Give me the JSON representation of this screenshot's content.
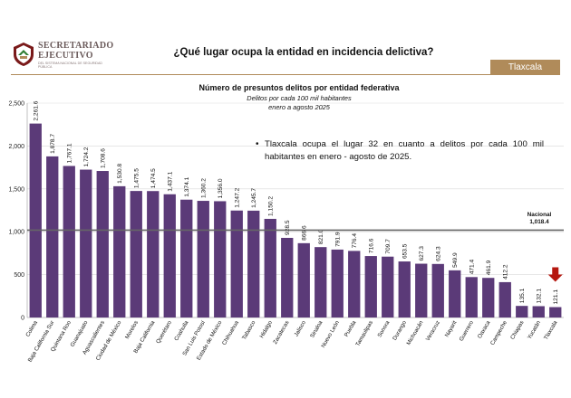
{
  "header": {
    "org_name": "SECRETARIADO EJECUTIVO",
    "org_subtitle": "del Sistema Nacional de Seguridad Pública",
    "question": "¿Qué lugar ocupa la entidad en incidencia delictiva?",
    "state_tab": "Tlaxcala",
    "accent_color": "#b08b5a"
  },
  "note": "Tlaxcala ocupa el lugar 32 en cuanto a delitos por cada 100 mil habitantes en enero - agosto de 2025.",
  "chart_data": {
    "type": "bar",
    "title": "Número de presuntos delitos por entidad federativa",
    "subtitle": "Delitos por cada 100 mil habitantes",
    "period": "enero a agosto 2025",
    "categories": [
      "Colima",
      "Baja California Sur",
      "Quintana Roo",
      "Guanajuato",
      "Aguascalientes",
      "Ciudad de México",
      "Morelos",
      "Baja California",
      "Querétaro",
      "Coahuila",
      "San Luis Potosí",
      "Estado de México",
      "Chihuahua",
      "Tabasco",
      "Hidalgo",
      "Zacatecas",
      "Jalisco",
      "Sinaloa",
      "Nuevo León",
      "Puebla",
      "Tamaulipas",
      "Sonora",
      "Durango",
      "Michoacán",
      "Veracruz",
      "Nayarit",
      "Guerrero",
      "Oaxaca",
      "Campeche",
      "Chiapas",
      "Yucatán",
      "Tlaxcala"
    ],
    "values": [
      2261.6,
      1878.7,
      1767.1,
      1724.2,
      1708.6,
      1530.8,
      1475.5,
      1474.5,
      1437.1,
      1374.1,
      1360.2,
      1356.0,
      1247.2,
      1245.7,
      1150.2,
      928.5,
      866.6,
      821.0,
      791.9,
      776.4,
      716.6,
      709.7,
      653.5,
      627.3,
      624.3,
      549.9,
      471.4,
      461.9,
      412.2,
      135.1,
      132.1,
      121.1
    ],
    "value_labels": [
      "2,261.6",
      "1,878.7",
      "1,767.1",
      "1,724.2",
      "1,708.6",
      "1,530.8",
      "1,475.5",
      "1,474.5",
      "1,437.1",
      "1,374.1",
      "1,360.2",
      "1,356.0",
      "1,247.2",
      "1,245.7",
      "1,150.2",
      "928.5",
      "866.6",
      "821.0",
      "791.9",
      "776.4",
      "716.6",
      "709.7",
      "653.5",
      "627.3",
      "624.3",
      "549.9",
      "471.4",
      "461.9",
      "412.2",
      "135.1",
      "132.1",
      "121.1"
    ],
    "ylim": [
      0,
      2500
    ],
    "yticks": [
      0,
      500,
      1000,
      1500,
      2000,
      2500
    ],
    "ytick_labels": [
      "0",
      "500",
      "1,000",
      "1,500",
      "2,000",
      "2,500"
    ],
    "reference_line": {
      "label": "Nacional",
      "value": 1018.4,
      "value_label": "1,018.4",
      "color": "#666666"
    },
    "highlight": "Tlaxcala",
    "bar_color": "#5b3a78",
    "marker_color": "#b5170f",
    "grid": true
  }
}
